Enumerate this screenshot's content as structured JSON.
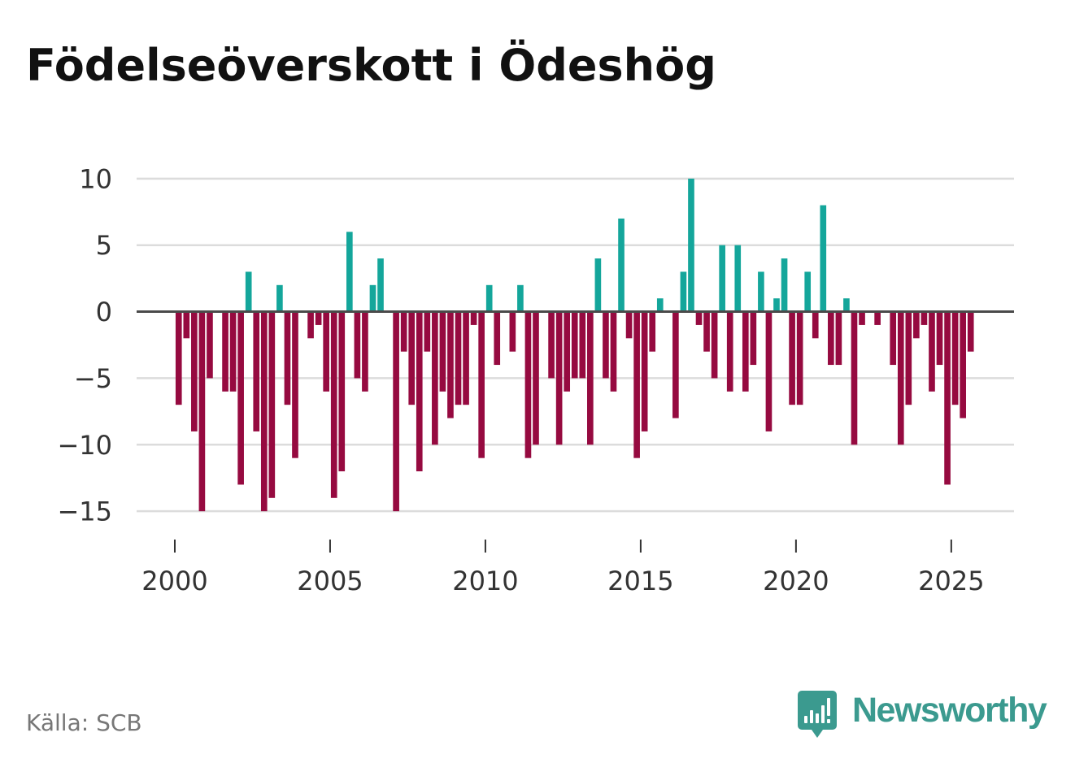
{
  "chart_data": {
    "type": "bar",
    "title": "Födelseöverskott i Ödeshög",
    "grid": true,
    "xlim": [
      1998.77,
      2027.02
    ],
    "ylim": [
      -16.7,
      10.6
    ],
    "periods_per_year": 4,
    "x_ticks": [
      2000,
      2005,
      2010,
      2015,
      2020,
      2025
    ],
    "y_ticks": [
      {
        "value": 10,
        "label": "10"
      },
      {
        "value": 5,
        "label": "5"
      },
      {
        "value": 0,
        "label": "0"
      },
      {
        "value": -5,
        "label": "−5"
      },
      {
        "value": -10,
        "label": "−10"
      },
      {
        "value": -15,
        "label": "−15"
      }
    ],
    "colors": {
      "positive": "#14a69b",
      "negative": "#960a40",
      "zero_line": "#4a4a4a",
      "grid": "#dcdcdc"
    },
    "data": [
      {
        "year": 2000,
        "values": [
          -7,
          -2,
          -9,
          -15
        ]
      },
      {
        "year": 2001,
        "values": [
          -5,
          0,
          -6,
          -6
        ]
      },
      {
        "year": 2002,
        "values": [
          -13,
          3,
          -9,
          -15
        ]
      },
      {
        "year": 2003,
        "values": [
          -14,
          2,
          -7,
          -11
        ]
      },
      {
        "year": 2004,
        "values": [
          0,
          -2,
          -1,
          -6
        ]
      },
      {
        "year": 2005,
        "values": [
          -14,
          -12,
          6,
          -5
        ]
      },
      {
        "year": 2006,
        "values": [
          -6,
          2,
          4,
          0
        ]
      },
      {
        "year": 2007,
        "values": [
          -15,
          -3,
          -7,
          -12
        ]
      },
      {
        "year": 2008,
        "values": [
          -3,
          -10,
          -6,
          -8
        ]
      },
      {
        "year": 2009,
        "values": [
          -7,
          -7,
          -1,
          -11
        ]
      },
      {
        "year": 2010,
        "values": [
          2,
          -4,
          0,
          -3
        ]
      },
      {
        "year": 2011,
        "values": [
          2,
          -11,
          -10,
          0
        ]
      },
      {
        "year": 2012,
        "values": [
          -5,
          -10,
          -6,
          -5
        ]
      },
      {
        "year": 2013,
        "values": [
          -5,
          -10,
          4,
          -5
        ]
      },
      {
        "year": 2014,
        "values": [
          -6,
          7,
          -2,
          -11
        ]
      },
      {
        "year": 2015,
        "values": [
          -9,
          -3,
          1,
          0
        ]
      },
      {
        "year": 2016,
        "values": [
          -8,
          3,
          10,
          -1
        ]
      },
      {
        "year": 2017,
        "values": [
          -3,
          -5,
          5,
          -6
        ]
      },
      {
        "year": 2018,
        "values": [
          5,
          -6,
          -4,
          3
        ]
      },
      {
        "year": 2019,
        "values": [
          -9,
          1,
          4,
          -7
        ]
      },
      {
        "year": 2020,
        "values": [
          -7,
          3,
          -2,
          8
        ]
      },
      {
        "year": 2021,
        "values": [
          -4,
          -4,
          1,
          -10
        ]
      },
      {
        "year": 2022,
        "values": [
          -1,
          0,
          -1,
          0
        ]
      },
      {
        "year": 2023,
        "values": [
          -4,
          -10,
          -7,
          -2
        ]
      },
      {
        "year": 2024,
        "values": [
          -1,
          -6,
          -4,
          -13
        ]
      },
      {
        "year": 2025,
        "values": [
          -7,
          -8,
          -3
        ]
      }
    ]
  },
  "footer": {
    "source": "Källa: SCB",
    "logo_text": "Newsworthy",
    "logo_icon": "newsworthy-bar-chart-icon",
    "brand_color": "#3b9a8f"
  }
}
